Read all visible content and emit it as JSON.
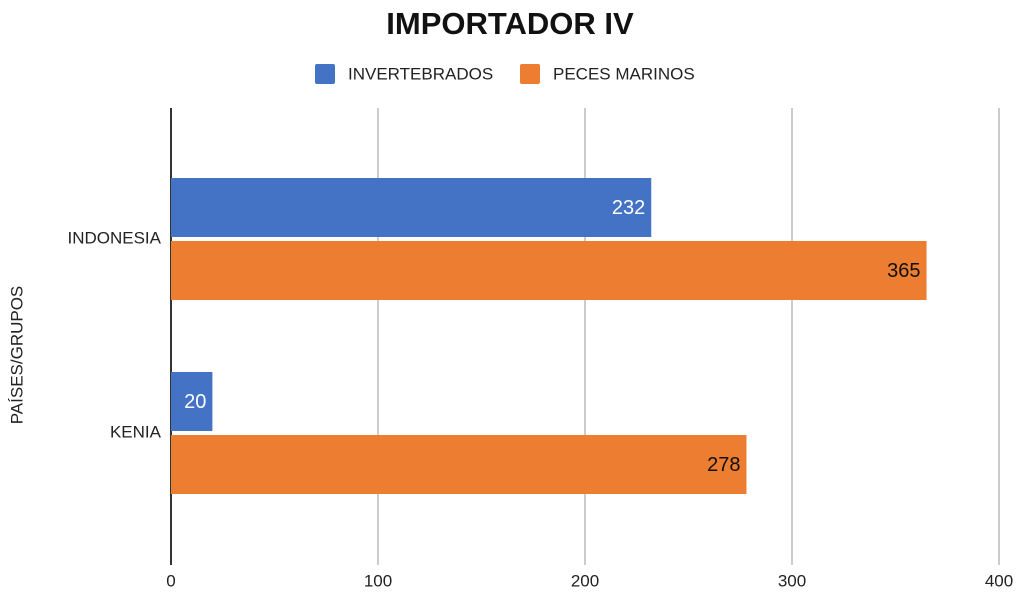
{
  "chart_data": {
    "type": "barh",
    "title": "IMPORTADOR IV",
    "y_label": "PAÍSES/GRUPOS",
    "categories": [
      "INDONESIA",
      "KENIA"
    ],
    "series": [
      {
        "name": "INVERTEBRADOS",
        "color": "#4472c4",
        "values": [
          232,
          20
        ]
      },
      {
        "name": "PECES MARINOS",
        "color": "#ed7d31",
        "values": [
          365,
          278
        ]
      }
    ],
    "xlim": [
      0,
      400
    ],
    "xticks": [
      0,
      100,
      200,
      300,
      400
    ],
    "grid": true,
    "legend": "top"
  }
}
